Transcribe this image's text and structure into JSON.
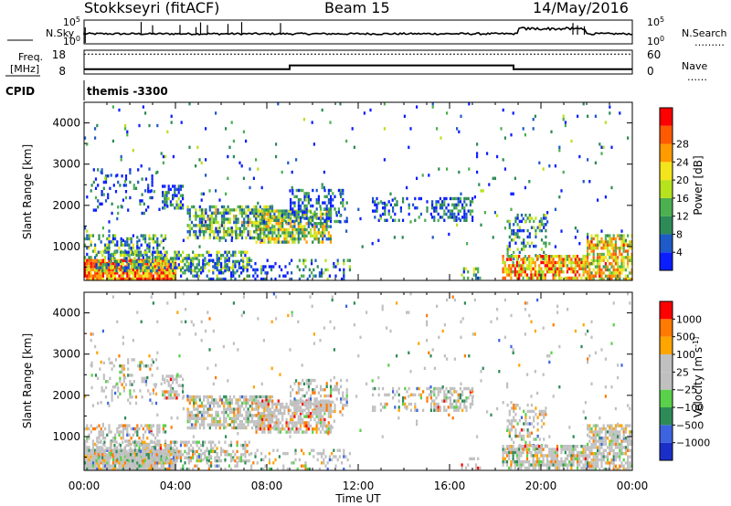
{
  "header": {
    "station": "Stokkseyri (fitACF)",
    "beam": "Beam 15",
    "date": "14/May/2016"
  },
  "panels": {
    "nsky_label": "N.Sky",
    "nsearch_label": "N.Search",
    "nsearch_line": "………",
    "noise_ticks_left": [
      "10^5",
      "10^0"
    ],
    "noise_ticks_right": [
      "10^5",
      "10^0"
    ],
    "freq_label_1": "Freq.",
    "freq_label_2": "[MHz]",
    "freq_ticks": [
      "18",
      "8"
    ],
    "nave_label": "Nave",
    "nave_line": "……",
    "nave_ticks": [
      "60",
      "0"
    ],
    "cpid_label": "CPID",
    "cpid_value": "themis -3300"
  },
  "colors": {
    "power_scale": [
      "#0a1eff",
      "#1e5ac8",
      "#2e8b57",
      "#4caf50",
      "#b6e21e",
      "#f3e51c",
      "#ff9a00",
      "#ff5a00",
      "#ff0000"
    ],
    "velocity_scale": [
      "#1a2fc8",
      "#3c64e0",
      "#2e8b57",
      "#59d14a",
      "#c0c0c0",
      "#c0c0c0",
      "#ffa500",
      "#ff7a00",
      "#ff0000"
    ]
  },
  "chart_data": [
    {
      "type": "heatmap",
      "name": "power",
      "ylabel": "Slant Range [km]",
      "colorbar_label": "Power [dB]",
      "colorbar_ticks": [
        "4",
        "8",
        "12",
        "16",
        "20",
        "24",
        "28"
      ],
      "xlim": [
        0,
        24
      ],
      "ylim": [
        180,
        4500
      ],
      "xticks": [
        "00:00",
        "04:00",
        "08:00",
        "12:00",
        "16:00",
        "20:00",
        "00:00"
      ],
      "yticks": [
        "1000",
        "2000",
        "3000",
        "4000"
      ],
      "ytick_values": [
        1000,
        2000,
        3000,
        4000
      ]
    },
    {
      "type": "heatmap",
      "name": "velocity",
      "ylabel": "Slant Range [km]",
      "colorbar_label": "Velocity [m s^-1]",
      "colorbar_ticks": [
        "1000",
        "500",
        "100",
        "25",
        "−25",
        "−100",
        "−500",
        "−1000"
      ],
      "xlabel": "Time UT",
      "xlim": [
        0,
        24
      ],
      "ylim": [
        180,
        4500
      ],
      "xticks": [
        "00:00",
        "04:00",
        "08:00",
        "12:00",
        "16:00",
        "20:00",
        "00:00"
      ],
      "yticks": [
        "1000",
        "2000",
        "3000",
        "4000"
      ],
      "ytick_values": [
        1000,
        2000,
        3000,
        4000
      ]
    }
  ],
  "timeseries": {
    "freq_mhz": {
      "x": [
        0,
        9.0,
        9.0,
        18.8,
        18.8,
        24
      ],
      "y": [
        10.0,
        10.0,
        11.6,
        11.6,
        10.0,
        10.0
      ],
      "ylim": [
        8,
        18
      ]
    },
    "nave": {
      "x": [
        0,
        24
      ],
      "y": [
        50,
        50
      ],
      "ylim": [
        0,
        60
      ]
    }
  }
}
